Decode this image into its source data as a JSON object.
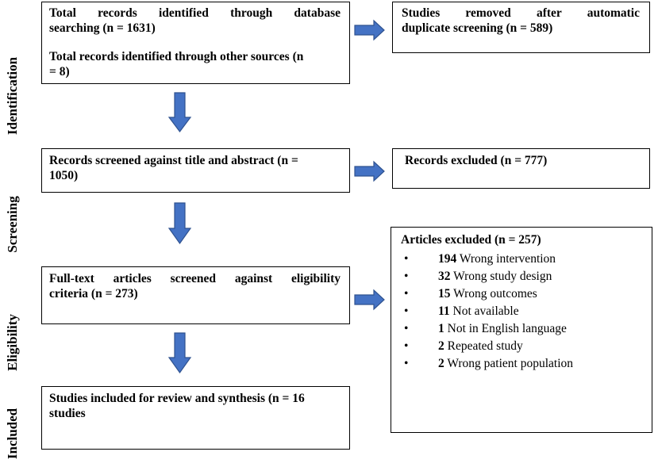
{
  "colors": {
    "arrow_fill": "#4472c4",
    "arrow_stroke": "#2f528f",
    "border": "#000000"
  },
  "phases": {
    "identification": "Identification",
    "screening": "Screening",
    "eligibility": "Eligibility",
    "included": "Included"
  },
  "boxes": {
    "identified_db": {
      "line1": "Total records identified through database",
      "line2": "searching (n = 1631)"
    },
    "identified_other": {
      "line1": "Total records identified through other sources (n",
      "line2": "= 8)"
    },
    "removed_duplicates": {
      "line1": "Studies removed after automatic",
      "line2": "duplicate screening (n = 589)"
    },
    "screened": {
      "line1": "Records screened against title and abstract (n =",
      "line2": "1050)"
    },
    "excluded_records": {
      "text": "Records excluded (n = 777)"
    },
    "fulltext": {
      "line1": "Full-text articles screened against eligibility",
      "line2": "criteria (n = 273)"
    },
    "included_studies": {
      "line1": "Studies included for review and synthesis (n = 16",
      "line2": "studies"
    },
    "articles_excluded": {
      "title": "Articles excluded (n = 257)",
      "bullet_symbol": "•",
      "items": [
        {
          "count": "194",
          "reason": "Wrong intervention"
        },
        {
          "count": "32",
          "reason": "Wrong study design"
        },
        {
          "count": "15",
          "reason": "Wrong outcomes"
        },
        {
          "count": "11",
          "reason": "Not available"
        },
        {
          "count": "1",
          "reason": "Not in English language"
        },
        {
          "count": "2",
          "reason": "Repeated study"
        },
        {
          "count": "2",
          "reason": "Wrong patient population"
        }
      ]
    }
  }
}
